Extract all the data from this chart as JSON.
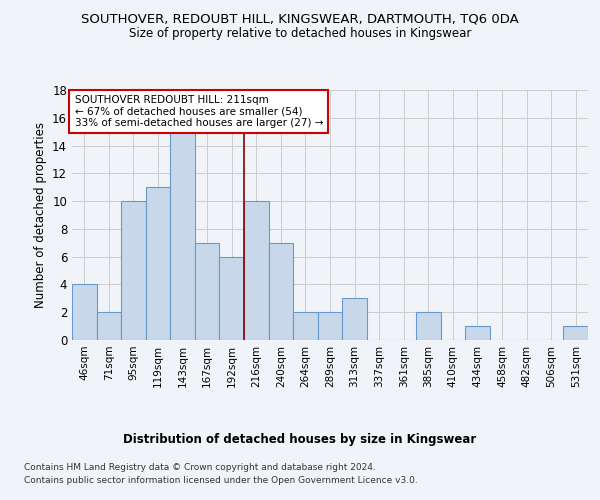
{
  "title": "SOUTHOVER, REDOUBT HILL, KINGSWEAR, DARTMOUTH, TQ6 0DA",
  "subtitle": "Size of property relative to detached houses in Kingswear",
  "xlabel": "Distribution of detached houses by size in Kingswear",
  "ylabel": "Number of detached properties",
  "categories": [
    "46sqm",
    "71sqm",
    "95sqm",
    "119sqm",
    "143sqm",
    "167sqm",
    "192sqm",
    "216sqm",
    "240sqm",
    "264sqm",
    "289sqm",
    "313sqm",
    "337sqm",
    "361sqm",
    "385sqm",
    "410sqm",
    "434sqm",
    "458sqm",
    "482sqm",
    "506sqm",
    "531sqm"
  ],
  "values": [
    4,
    2,
    10,
    11,
    15,
    7,
    6,
    10,
    7,
    2,
    2,
    3,
    0,
    0,
    2,
    0,
    1,
    0,
    0,
    0,
    1
  ],
  "bar_color": "#c8d8ea",
  "bar_edge_color": "#6699cc",
  "vline_x_index": 7,
  "vline_color": "#880000",
  "annotation_text_line1": "SOUTHOVER REDOUBT HILL: 211sqm",
  "annotation_text_line2": "← 67% of detached houses are smaller (54)",
  "annotation_text_line3": "33% of semi-detached houses are larger (27) →",
  "annotation_box_facecolor": "#ffffff",
  "annotation_box_edgecolor": "#cc0000",
  "ylim": [
    0,
    18
  ],
  "yticks": [
    0,
    2,
    4,
    6,
    8,
    10,
    12,
    14,
    16,
    18
  ],
  "grid_color": "#cccccc",
  "background_color": "#f0f4f8",
  "footer_line1": "Contains HM Land Registry data © Crown copyright and database right 2024.",
  "footer_line2": "Contains public sector information licensed under the Open Government Licence v3.0."
}
